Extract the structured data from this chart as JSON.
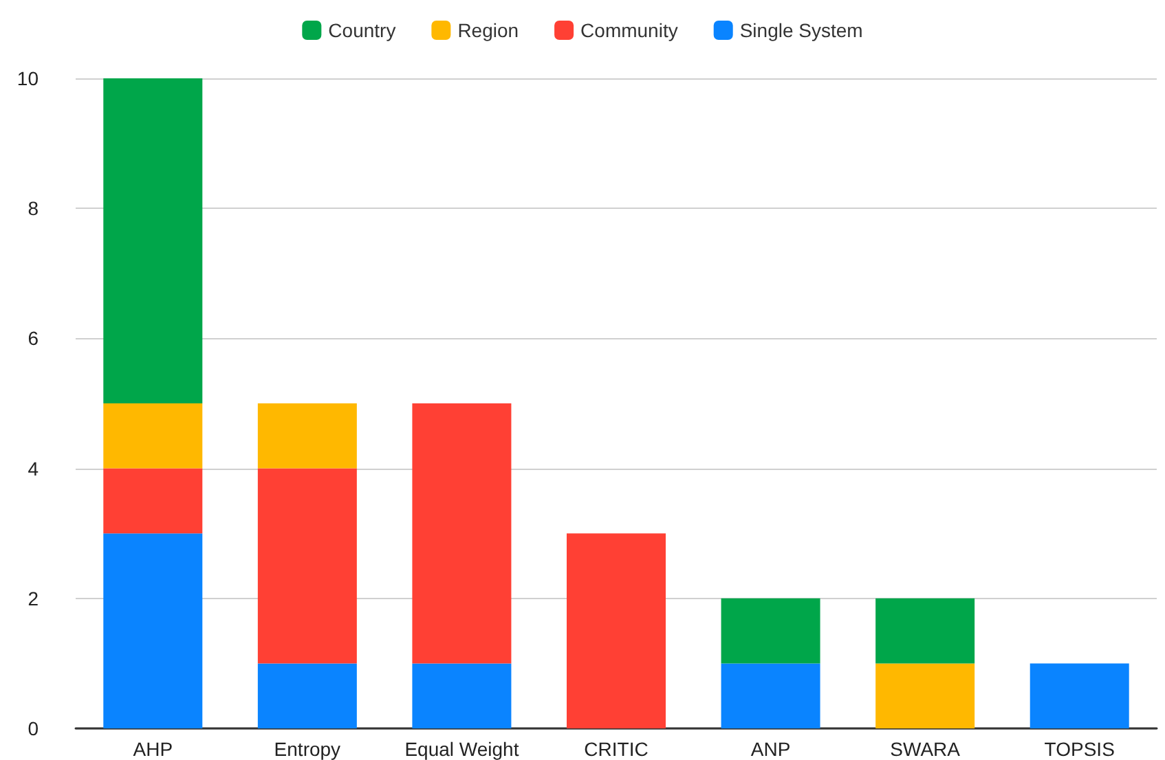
{
  "chart_data": {
    "type": "bar",
    "stacked": true,
    "categories": [
      "AHP",
      "Entropy",
      "Equal Weight",
      "CRITIC",
      "ANP",
      "SWARA",
      "TOPSIS"
    ],
    "series": [
      {
        "name": "Single System",
        "color": "#0a84ff",
        "values": [
          3,
          1,
          1,
          null,
          1,
          null,
          1
        ]
      },
      {
        "name": "Community",
        "color": "#ff4034",
        "values": [
          1,
          3,
          4,
          3,
          null,
          null,
          null
        ]
      },
      {
        "name": "Region",
        "color": "#ffb800",
        "values": [
          1,
          1,
          null,
          null,
          null,
          1,
          null
        ]
      },
      {
        "name": "Country",
        "color": "#00a64a",
        "values": [
          5,
          null,
          null,
          null,
          1,
          1,
          null
        ]
      }
    ],
    "ylim": [
      0,
      10
    ],
    "yticks": [
      0,
      2,
      4,
      6,
      8,
      10
    ],
    "grid": "y",
    "legend": "top"
  }
}
